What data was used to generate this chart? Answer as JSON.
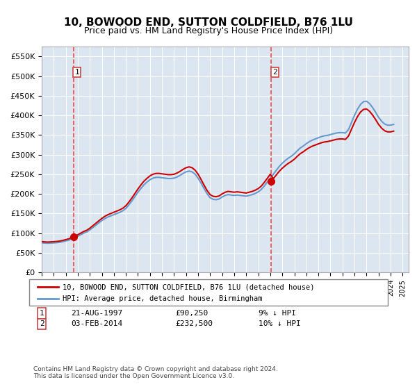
{
  "title": "10, BOWOOD END, SUTTON COLDFIELD, B76 1LU",
  "subtitle": "Price paid vs. HM Land Registry's House Price Index (HPI)",
  "ylabel": "",
  "background_color": "#dce6f1",
  "plot_bg_color": "#dce6f1",
  "ylim": [
    0,
    575000
  ],
  "yticks": [
    0,
    50000,
    100000,
    150000,
    200000,
    250000,
    300000,
    350000,
    400000,
    450000,
    500000,
    550000
  ],
  "ytick_labels": [
    "£0",
    "£50K",
    "£100K",
    "£150K",
    "£200K",
    "£250K",
    "£300K",
    "£350K",
    "£400K",
    "£450K",
    "£500K",
    "£550K"
  ],
  "xlim_start": 1995.0,
  "xlim_end": 2025.5,
  "xtick_years": [
    1995,
    1996,
    1997,
    1998,
    1999,
    2000,
    2001,
    2002,
    2003,
    2004,
    2005,
    2006,
    2007,
    2008,
    2009,
    2010,
    2011,
    2012,
    2013,
    2014,
    2015,
    2016,
    2017,
    2018,
    2019,
    2020,
    2021,
    2022,
    2023,
    2024,
    2025
  ],
  "purchase1_x": 1997.639,
  "purchase1_y": 90250,
  "purchase1_label": "1",
  "purchase2_x": 2014.09,
  "purchase2_y": 232500,
  "purchase2_label": "2",
  "red_line_color": "#cc0000",
  "blue_line_color": "#6699cc",
  "marker_color": "#cc0000",
  "dashed_line_color": "#ff4444",
  "legend_line1": "10, BOWOOD END, SUTTON COLDFIELD, B76 1LU (detached house)",
  "legend_line2": "HPI: Average price, detached house, Birmingham",
  "annotation1_date": "21-AUG-1997",
  "annotation1_price": "£90,250",
  "annotation1_hpi": "9% ↓ HPI",
  "annotation2_date": "03-FEB-2014",
  "annotation2_price": "£232,500",
  "annotation2_hpi": "10% ↓ HPI",
  "footer": "Contains HM Land Registry data © Crown copyright and database right 2024.\nThis data is licensed under the Open Government Licence v3.0.",
  "hpi_data_x": [
    1995.0,
    1995.25,
    1995.5,
    1995.75,
    1996.0,
    1996.25,
    1996.5,
    1996.75,
    1997.0,
    1997.25,
    1997.5,
    1997.75,
    1998.0,
    1998.25,
    1998.5,
    1998.75,
    1999.0,
    1999.25,
    1999.5,
    1999.75,
    2000.0,
    2000.25,
    2000.5,
    2000.75,
    2001.0,
    2001.25,
    2001.5,
    2001.75,
    2002.0,
    2002.25,
    2002.5,
    2002.75,
    2003.0,
    2003.25,
    2003.5,
    2003.75,
    2004.0,
    2004.25,
    2004.5,
    2004.75,
    2005.0,
    2005.25,
    2005.5,
    2005.75,
    2006.0,
    2006.25,
    2006.5,
    2006.75,
    2007.0,
    2007.25,
    2007.5,
    2007.75,
    2008.0,
    2008.25,
    2008.5,
    2008.75,
    2009.0,
    2009.25,
    2009.5,
    2009.75,
    2010.0,
    2010.25,
    2010.5,
    2010.75,
    2011.0,
    2011.25,
    2011.5,
    2011.75,
    2012.0,
    2012.25,
    2012.5,
    2012.75,
    2013.0,
    2013.25,
    2013.5,
    2013.75,
    2014.0,
    2014.25,
    2014.5,
    2014.75,
    2015.0,
    2015.25,
    2015.5,
    2015.75,
    2016.0,
    2016.25,
    2016.5,
    2016.75,
    2017.0,
    2017.25,
    2017.5,
    2017.75,
    2018.0,
    2018.25,
    2018.5,
    2018.75,
    2019.0,
    2019.25,
    2019.5,
    2019.75,
    2020.0,
    2020.25,
    2020.5,
    2020.75,
    2021.0,
    2021.25,
    2021.5,
    2021.75,
    2022.0,
    2022.25,
    2022.5,
    2022.75,
    2023.0,
    2023.25,
    2023.5,
    2023.75,
    2024.0,
    2024.25
  ],
  "hpi_data_y": [
    75000,
    74500,
    74000,
    74500,
    75000,
    75500,
    76500,
    78000,
    80000,
    82000,
    85000,
    88000,
    92000,
    96000,
    100000,
    103000,
    108000,
    114000,
    120000,
    126000,
    132000,
    137000,
    141000,
    144000,
    147000,
    150000,
    153000,
    157000,
    163000,
    172000,
    182000,
    193000,
    204000,
    214000,
    223000,
    230000,
    236000,
    240000,
    242000,
    242000,
    241000,
    240000,
    239000,
    239000,
    240000,
    243000,
    247000,
    252000,
    256000,
    258000,
    256000,
    250000,
    240000,
    227000,
    213000,
    200000,
    190000,
    186000,
    185000,
    187000,
    192000,
    196000,
    198000,
    197000,
    196000,
    197000,
    196000,
    195000,
    194000,
    196000,
    198000,
    201000,
    205000,
    211000,
    220000,
    230000,
    240000,
    250000,
    260000,
    270000,
    278000,
    285000,
    291000,
    296000,
    302000,
    310000,
    317000,
    322000,
    328000,
    333000,
    337000,
    340000,
    343000,
    346000,
    348000,
    349000,
    351000,
    353000,
    355000,
    356000,
    356000,
    355000,
    364000,
    382000,
    400000,
    416000,
    428000,
    435000,
    436000,
    430000,
    420000,
    408000,
    395000,
    385000,
    378000,
    375000,
    375000,
    377000
  ],
  "property_data_x": [
    1995.0,
    1995.25,
    1995.5,
    1995.75,
    1996.0,
    1996.25,
    1996.5,
    1996.75,
    1997.0,
    1997.25,
    1997.5,
    1997.75,
    1998.0,
    1998.25,
    1998.5,
    1998.75,
    1999.0,
    1999.25,
    1999.5,
    1999.75,
    2000.0,
    2000.25,
    2000.5,
    2000.75,
    2001.0,
    2001.25,
    2001.5,
    2001.75,
    2002.0,
    2002.25,
    2002.5,
    2002.75,
    2003.0,
    2003.25,
    2003.5,
    2003.75,
    2004.0,
    2004.25,
    2004.5,
    2004.75,
    2005.0,
    2005.25,
    2005.5,
    2005.75,
    2006.0,
    2006.25,
    2006.5,
    2006.75,
    2007.0,
    2007.25,
    2007.5,
    2007.75,
    2008.0,
    2008.25,
    2008.5,
    2008.75,
    2009.0,
    2009.25,
    2009.5,
    2009.75,
    2010.0,
    2010.25,
    2010.5,
    2010.75,
    2011.0,
    2011.25,
    2011.5,
    2011.75,
    2012.0,
    2012.25,
    2012.5,
    2012.75,
    2013.0,
    2013.25,
    2013.5,
    2013.75,
    2014.0,
    2014.25,
    2014.5,
    2014.75,
    2015.0,
    2015.25,
    2015.5,
    2015.75,
    2016.0,
    2016.25,
    2016.5,
    2016.75,
    2017.0,
    2017.25,
    2017.5,
    2017.75,
    2018.0,
    2018.25,
    2018.5,
    2018.75,
    2019.0,
    2019.25,
    2019.5,
    2019.75,
    2020.0,
    2020.25,
    2020.5,
    2020.75,
    2021.0,
    2021.25,
    2021.5,
    2021.75,
    2022.0,
    2022.25,
    2022.5,
    2022.75,
    2023.0,
    2023.25,
    2023.5,
    2023.75,
    2024.0,
    2024.25
  ],
  "property_data_y": [
    68000,
    68000,
    68200,
    68500,
    69000,
    70000,
    71500,
    74000,
    77000,
    80000,
    83000,
    87000,
    91000,
    95000,
    99000,
    103000,
    108000,
    114000,
    120000,
    126000,
    132000,
    137000,
    141000,
    144000,
    147000,
    150000,
    153000,
    157000,
    163000,
    172000,
    182000,
    193000,
    204000,
    214000,
    223000,
    230000,
    236000,
    240000,
    242000,
    242000,
    241000,
    240000,
    239000,
    239000,
    240000,
    243000,
    247000,
    252000,
    256000,
    258000,
    256000,
    250000,
    240000,
    227000,
    213000,
    200000,
    190000,
    186000,
    185000,
    187000,
    192000,
    196000,
    198000,
    197000,
    196000,
    197000,
    196000,
    195000,
    194000,
    196000,
    198000,
    201000,
    205000,
    211000,
    220000,
    230000,
    240000,
    250000,
    260000,
    270000,
    278000,
    285000,
    291000,
    296000,
    302000,
    310000,
    317000,
    322000,
    328000,
    333000,
    337000,
    340000,
    343000,
    346000,
    348000,
    349000,
    351000,
    353000,
    355000,
    356000,
    356000,
    355000,
    364000,
    382000,
    400000,
    416000,
    428000,
    435000,
    436000,
    430000,
    420000,
    408000,
    395000,
    385000,
    378000,
    375000,
    375000,
    377000
  ]
}
